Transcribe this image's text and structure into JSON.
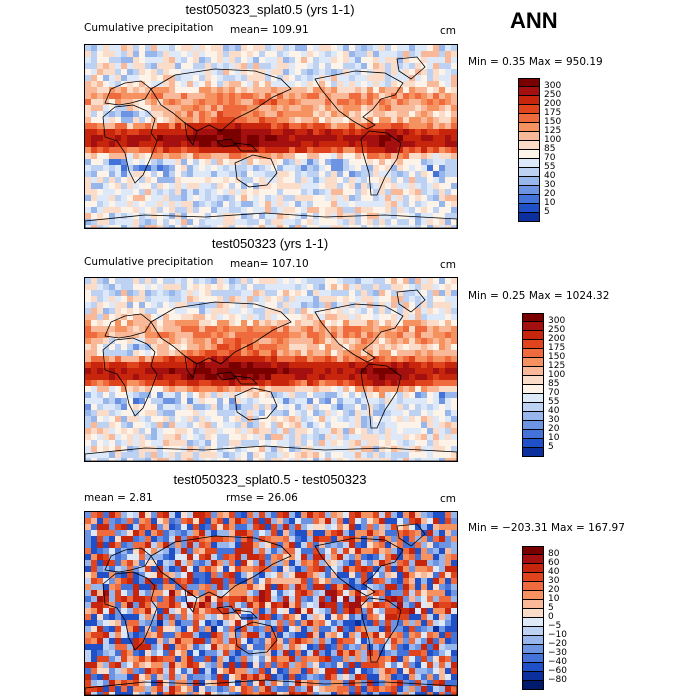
{
  "season": "ANN",
  "units": "cm",
  "panels": [
    {
      "title": "test050323_splat0.5 (yrs 1-1)",
      "left_label": "Cumulative precipitation",
      "stat1": "mean= 109.91",
      "stat2": "",
      "minmax": "Min =    0.35 Max = 950.19",
      "kind": "abs"
    },
    {
      "title": "test050323 (yrs 1-1)",
      "left_label": "Cumulative precipitation",
      "stat1": "mean= 107.10",
      "stat2": "",
      "minmax": "Min =    0.25 Max = 1024.32",
      "kind": "abs"
    },
    {
      "title": "test050323_splat0.5 - test050323",
      "left_label": "",
      "stat1": "mean =    2.81",
      "stat2": "rmse =   26.06",
      "minmax": "Min = −203.31 Max = 167.97",
      "kind": "diff"
    }
  ],
  "colorbar_abs": {
    "labels": [
      "300",
      "250",
      "200",
      "175",
      "150",
      "125",
      "100",
      "85",
      "70",
      "55",
      "40",
      "30",
      "20",
      "10",
      "5"
    ],
    "colors": [
      "#7a0000",
      "#a40f0f",
      "#c8260c",
      "#e0441d",
      "#ef6a3c",
      "#f5925f",
      "#f9b998",
      "#fbdcc8",
      "#fdf3e8",
      "#dde8f8",
      "#bdd2f3",
      "#97b6ec",
      "#6d93e3",
      "#4372d8",
      "#1f50c8",
      "#0c2f9e"
    ]
  },
  "colorbar_diff": {
    "labels": [
      "80",
      "60",
      "40",
      "30",
      "20",
      "10",
      "5",
      "0",
      "−5",
      "−10",
      "−20",
      "−30",
      "−40",
      "−60",
      "−80"
    ],
    "colors": [
      "#7a0000",
      "#a40f0f",
      "#c8260c",
      "#e0441d",
      "#ef6a3c",
      "#f5925f",
      "#f9b998",
      "#fbdcc8",
      "#dde8f8",
      "#bdd2f3",
      "#97b6ec",
      "#6d93e3",
      "#4372d8",
      "#1f50c8",
      "#0c2f9e",
      "#001a6e"
    ]
  }
}
